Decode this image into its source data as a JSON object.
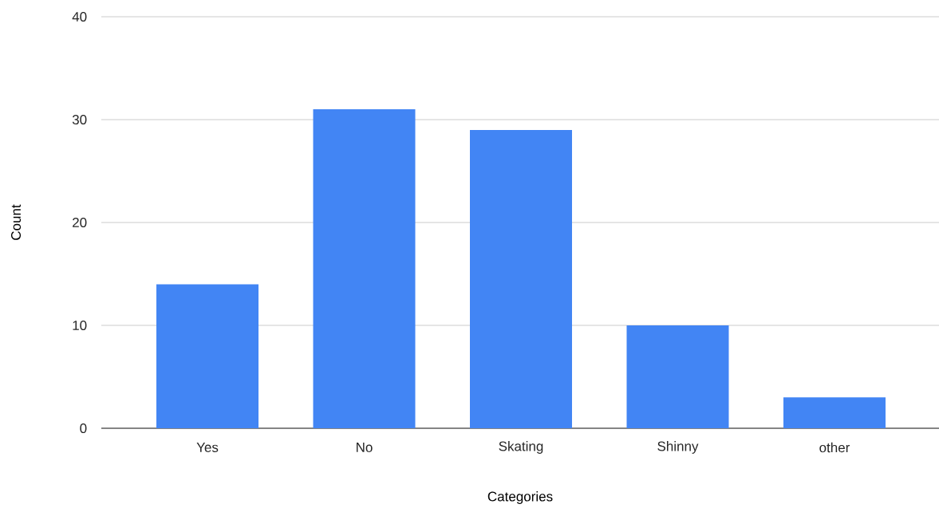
{
  "chart_data": {
    "type": "bar",
    "categories": [
      "Yes",
      "No",
      "Skating",
      "Shinny",
      "other"
    ],
    "values": [
      14,
      31,
      29,
      10,
      3
    ],
    "color": "#4285f4",
    "xlabel": "Categories",
    "ylabel": "Count",
    "ylim": [
      0,
      40
    ],
    "yticks": [
      0,
      10,
      20,
      30,
      40
    ],
    "grid": "y"
  }
}
